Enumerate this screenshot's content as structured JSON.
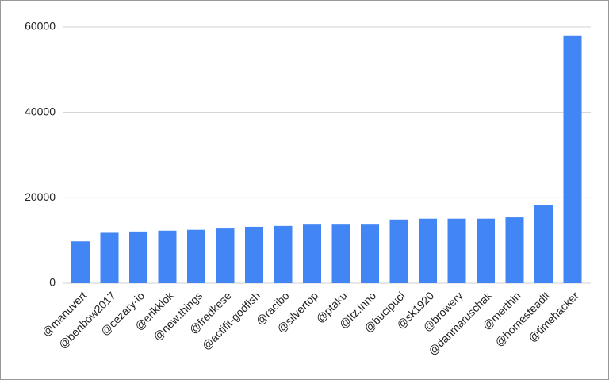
{
  "chart_data": {
    "type": "bar",
    "categories": [
      "@manuvert",
      "@benbow2017",
      "@cezary-io",
      "@erikklok",
      "@new.things",
      "@fredkese",
      "@actifit-godfish",
      "@racibo",
      "@silvertop",
      "@ptaku",
      "@ltz.inno",
      "@bucipuci",
      "@sk1920",
      "@browery",
      "@danmaruschak",
      "@merthin",
      "@homesteadlt",
      "@timehacker"
    ],
    "values": [
      9800,
      11800,
      12100,
      12300,
      12500,
      12800,
      13200,
      13400,
      13900,
      13900,
      13900,
      14900,
      15100,
      15100,
      15100,
      15400,
      18200,
      58000
    ],
    "color": "#4285f4",
    "ylim": [
      0,
      60000
    ],
    "yticks": [
      0,
      20000,
      40000,
      60000
    ],
    "grid": true
  }
}
